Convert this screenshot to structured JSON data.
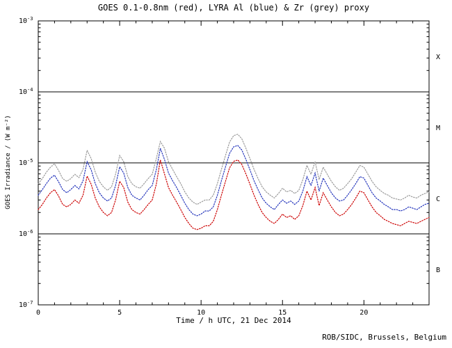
{
  "figure": {
    "title": "GOES 0.1-0.8nm (red), LYRA Al (blue) & Zr (grey) proxy",
    "xlabel": "Time / h UTC, 21 Dec 2014",
    "ylabel": "GOES Irradiance / (W m⁻²)",
    "credit": "ROB/SIDC, Brussels, Belgium"
  },
  "chart_data": {
    "type": "line",
    "title": "GOES 0.1-0.8nm (red), LYRA Al (blue) & Zr (grey) proxy",
    "xlabel": "Time / h UTC, 21 Dec 2014",
    "ylabel": "GOES Irradiance / (W m^-2)",
    "xlim": [
      0,
      24
    ],
    "x_tick_labels": [
      0,
      5,
      10,
      15,
      20
    ],
    "x_minor_tick_step_h": 1,
    "ylim_log10": [
      -7,
      -3
    ],
    "y_tick_exponents": [
      -3,
      -4,
      -5,
      -6,
      -7
    ],
    "hlines_log10": [
      -4,
      -5,
      -6
    ],
    "flare_class_labels": [
      {
        "label": "X",
        "log10_center": -3.5
      },
      {
        "label": "M",
        "log10_center": -4.5
      },
      {
        "label": "C",
        "log10_center": -5.5
      },
      {
        "label": "B",
        "log10_center": -6.5
      }
    ],
    "grid": false,
    "legend_position": "in-title",
    "x_start_h": 0,
    "x_step_h": 0.25,
    "value_unit": "1e-6 W m^-2",
    "series": [
      {
        "name": "GOES 0.1-0.8nm",
        "color": "#cc0000",
        "style": "dotted",
        "values": [
          2.2,
          2.6,
          3.2,
          3.8,
          4.2,
          3.4,
          2.6,
          2.4,
          2.6,
          3.0,
          2.7,
          3.5,
          6.5,
          5.0,
          3.2,
          2.4,
          2.0,
          1.8,
          2.0,
          3.0,
          5.5,
          4.5,
          2.8,
          2.2,
          2.0,
          1.9,
          2.2,
          2.6,
          3.0,
          5.0,
          11.0,
          7.0,
          4.5,
          3.5,
          2.8,
          2.2,
          1.7,
          1.4,
          1.2,
          1.15,
          1.2,
          1.3,
          1.3,
          1.5,
          2.2,
          3.5,
          5.5,
          8.5,
          10.5,
          11.0,
          9.5,
          7.0,
          5.0,
          3.5,
          2.6,
          2.0,
          1.7,
          1.5,
          1.4,
          1.6,
          1.9,
          1.7,
          1.8,
          1.6,
          1.8,
          2.5,
          4.0,
          3.0,
          4.5,
          2.5,
          3.8,
          3.0,
          2.4,
          2.0,
          1.8,
          1.9,
          2.2,
          2.6,
          3.2,
          4.0,
          3.8,
          3.0,
          2.4,
          2.0,
          1.8,
          1.6,
          1.5,
          1.4,
          1.35,
          1.3,
          1.4,
          1.5,
          1.45,
          1.4,
          1.5,
          1.6,
          1.7
        ]
      },
      {
        "name": "LYRA Al proxy",
        "color": "#2233bb",
        "style": "dotted",
        "values": [
          3.5,
          4.2,
          5.1,
          6.1,
          6.7,
          5.4,
          4.2,
          3.8,
          4.2,
          4.8,
          4.3,
          5.6,
          10.4,
          8.0,
          5.1,
          3.8,
          3.2,
          2.9,
          3.2,
          4.8,
          8.8,
          7.2,
          4.5,
          3.5,
          3.2,
          3.0,
          3.5,
          4.2,
          4.8,
          8.0,
          16.0,
          11.2,
          7.2,
          5.6,
          4.5,
          3.5,
          2.7,
          2.2,
          1.9,
          1.8,
          1.9,
          2.1,
          2.1,
          2.4,
          3.5,
          5.6,
          8.8,
          13.6,
          16.8,
          17.6,
          15.2,
          11.2,
          8.0,
          5.6,
          4.2,
          3.2,
          2.7,
          2.4,
          2.2,
          2.6,
          3.0,
          2.7,
          2.9,
          2.6,
          2.9,
          4.0,
          6.4,
          4.8,
          7.2,
          4.0,
          6.1,
          4.8,
          3.8,
          3.2,
          2.9,
          3.0,
          3.5,
          4.2,
          5.1,
          6.4,
          6.1,
          4.8,
          3.8,
          3.2,
          2.9,
          2.6,
          2.4,
          2.2,
          2.2,
          2.1,
          2.2,
          2.4,
          2.3,
          2.2,
          2.4,
          2.6,
          2.7
        ]
      },
      {
        "name": "LYRA Zr proxy",
        "color": "#9a9a9a",
        "style": "dotted",
        "values": [
          5.1,
          6.0,
          7.4,
          8.7,
          9.7,
          7.8,
          6.0,
          5.5,
          6.0,
          6.9,
          6.2,
          8.1,
          15.0,
          11.5,
          7.4,
          5.5,
          4.6,
          4.1,
          4.6,
          6.9,
          12.7,
          10.4,
          6.4,
          5.1,
          4.6,
          4.4,
          5.1,
          6.0,
          6.9,
          11.5,
          20.0,
          16.1,
          10.4,
          8.1,
          6.4,
          5.1,
          3.9,
          3.2,
          2.8,
          2.6,
          2.8,
          3.0,
          3.0,
          3.5,
          5.1,
          8.1,
          12.7,
          19.6,
          24.2,
          25.3,
          21.9,
          16.1,
          11.5,
          8.1,
          6.0,
          4.6,
          3.9,
          3.5,
          3.2,
          3.7,
          4.4,
          3.9,
          4.1,
          3.7,
          4.1,
          5.8,
          9.2,
          6.9,
          10.4,
          5.8,
          8.7,
          6.9,
          5.5,
          4.6,
          4.1,
          4.4,
          5.1,
          6.0,
          7.4,
          9.2,
          8.7,
          6.9,
          5.5,
          4.6,
          4.1,
          3.7,
          3.5,
          3.2,
          3.1,
          3.0,
          3.2,
          3.5,
          3.3,
          3.2,
          3.5,
          3.7,
          3.9
        ]
      }
    ]
  }
}
